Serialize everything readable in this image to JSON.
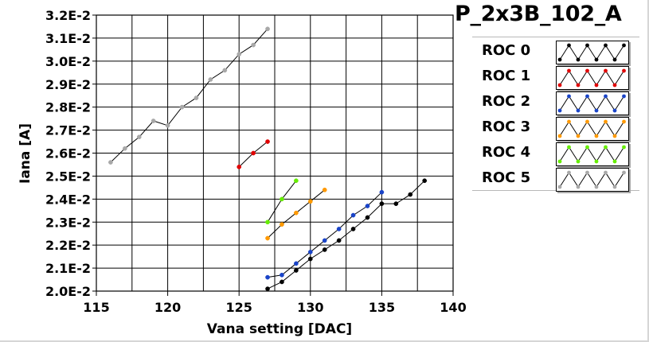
{
  "chart_data": {
    "type": "line",
    "title": "P_2x3B_102_A",
    "xlabel": "Vana setting [DAC]",
    "ylabel": "Iana [A]",
    "xlim": [
      115,
      140
    ],
    "ylim": [
      0.02,
      0.032
    ],
    "xticks": [
      115,
      120,
      125,
      130,
      135,
      140
    ],
    "x_tick_labels": [
      "115",
      "120",
      "125",
      "130",
      "135",
      "140"
    ],
    "yticks": [
      0.02,
      0.021,
      0.022,
      0.023,
      0.024,
      0.025,
      0.026,
      0.027,
      0.028,
      0.029,
      0.03,
      0.031,
      0.032
    ],
    "y_tick_labels": [
      "2.0E-2",
      "2.1E-2",
      "2.2E-2",
      "2.3E-2",
      "2.4E-2",
      "2.5E-2",
      "2.6E-2",
      "2.7E-2",
      "2.8E-2",
      "2.9E-2",
      "3.0E-2",
      "3.1E-2",
      "3.2E-2"
    ],
    "grid": true,
    "legend_position": "right",
    "series": [
      {
        "name": "ROC 0",
        "color": "#000000",
        "x": [
          127,
          128,
          129,
          130,
          131,
          132,
          133,
          134,
          135,
          136,
          137,
          138
        ],
        "y": [
          0.0201,
          0.0204,
          0.0209,
          0.0214,
          0.0218,
          0.0222,
          0.0227,
          0.0232,
          0.0238,
          0.0238,
          0.0242,
          0.0248
        ]
      },
      {
        "name": "ROC 1",
        "color": "#e00000",
        "x": [
          125,
          126,
          127
        ],
        "y": [
          0.0254,
          0.026,
          0.0265
        ]
      },
      {
        "name": "ROC 2",
        "color": "#1a44c8",
        "x": [
          127,
          128,
          129,
          130,
          131,
          132,
          133,
          134,
          135
        ],
        "y": [
          0.0206,
          0.0207,
          0.0212,
          0.0217,
          0.0222,
          0.0227,
          0.0233,
          0.0237,
          0.0243
        ]
      },
      {
        "name": "ROC 3",
        "color": "#ff9900",
        "x": [
          127,
          128,
          129,
          130,
          131
        ],
        "y": [
          0.0223,
          0.0229,
          0.0234,
          0.0239,
          0.0244
        ]
      },
      {
        "name": "ROC 4",
        "color": "#66ee00",
        "x": [
          127,
          128,
          129
        ],
        "y": [
          0.023,
          0.024,
          0.0248
        ]
      },
      {
        "name": "ROC 5",
        "color": "#a8a8a8",
        "x": [
          116,
          117,
          118,
          119,
          120,
          121,
          122,
          123,
          124,
          125,
          126,
          127
        ],
        "y": [
          0.0256,
          0.0262,
          0.0267,
          0.0274,
          0.0272,
          0.028,
          0.0284,
          0.0292,
          0.0296,
          0.0303,
          0.0307,
          0.0314
        ]
      }
    ]
  }
}
